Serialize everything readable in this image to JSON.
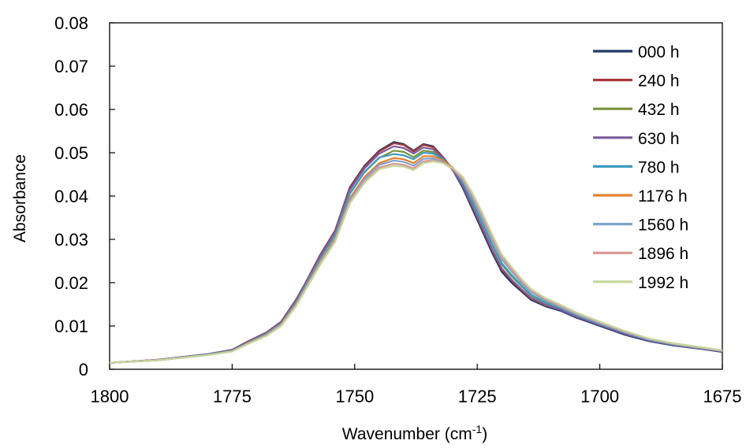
{
  "chart_data": {
    "type": "line",
    "title": "",
    "xlabel": "Wavenumber (cm",
    "xlabel_sup": "-1",
    "xlabel_suffix": ")",
    "ylabel": "Absorbance",
    "xlim": [
      1800,
      1675
    ],
    "x_reversed": true,
    "ylim": [
      0,
      0.08
    ],
    "x_ticks": [
      "1800",
      "1775",
      "1750",
      "1725",
      "1700",
      "1675"
    ],
    "y_ticks": [
      "0",
      "0.01",
      "0.02",
      "0.03",
      "0.04",
      "0.05",
      "0.06",
      "0.07",
      "0.08"
    ],
    "grid": false,
    "legend_position": "top-right",
    "x": [
      1800,
      1790,
      1780,
      1775,
      1772,
      1768,
      1765,
      1762,
      1760,
      1757,
      1754,
      1751,
      1748,
      1745,
      1742,
      1740,
      1738,
      1736,
      1734,
      1732,
      1730,
      1728,
      1726,
      1724,
      1722,
      1720,
      1718,
      1716,
      1714,
      1711,
      1708,
      1705,
      1700,
      1695,
      1690,
      1685,
      1680,
      1675
    ],
    "series": [
      {
        "name": "000 h",
        "color": "#1f3864",
        "values": [
          0.0015,
          0.0022,
          0.0035,
          0.0045,
          0.0063,
          0.0085,
          0.011,
          0.016,
          0.02,
          0.0265,
          0.032,
          0.042,
          0.047,
          0.0505,
          0.0525,
          0.052,
          0.0505,
          0.052,
          0.0515,
          0.049,
          0.046,
          0.042,
          0.037,
          0.032,
          0.027,
          0.0225,
          0.02,
          0.018,
          0.016,
          0.0145,
          0.0135,
          0.012,
          0.01,
          0.008,
          0.0065,
          0.0055,
          0.0048,
          0.004
        ]
      },
      {
        "name": "240 h",
        "color": "#a9373b",
        "values": [
          0.0015,
          0.0022,
          0.0035,
          0.0045,
          0.0063,
          0.0085,
          0.011,
          0.016,
          0.02,
          0.0265,
          0.032,
          0.0418,
          0.0468,
          0.0503,
          0.0522,
          0.0518,
          0.0503,
          0.0518,
          0.0513,
          0.049,
          0.0462,
          0.0425,
          0.0375,
          0.0325,
          0.0275,
          0.023,
          0.0205,
          0.0183,
          0.0163,
          0.0147,
          0.0137,
          0.0122,
          0.0102,
          0.0082,
          0.0067,
          0.0056,
          0.0049,
          0.0041
        ]
      },
      {
        "name": "432 h",
        "color": "#77933c",
        "values": [
          0.0015,
          0.0021,
          0.0034,
          0.0043,
          0.006,
          0.0082,
          0.0106,
          0.0154,
          0.0194,
          0.0256,
          0.031,
          0.0405,
          0.0455,
          0.0488,
          0.0505,
          0.0502,
          0.049,
          0.0505,
          0.0502,
          0.0485,
          0.0462,
          0.043,
          0.0385,
          0.0338,
          0.0288,
          0.0242,
          0.0215,
          0.0192,
          0.017,
          0.0152,
          0.014,
          0.0125,
          0.0104,
          0.0084,
          0.0068,
          0.0057,
          0.005,
          0.0042
        ]
      },
      {
        "name": "630 h",
        "color": "#7a5c9c",
        "values": [
          0.0015,
          0.0022,
          0.0035,
          0.0044,
          0.0062,
          0.0084,
          0.0109,
          0.0158,
          0.0198,
          0.0262,
          0.0317,
          0.0414,
          0.0464,
          0.0498,
          0.0515,
          0.0511,
          0.0498,
          0.0512,
          0.0508,
          0.0487,
          0.046,
          0.0424,
          0.0376,
          0.0328,
          0.0278,
          0.0233,
          0.0207,
          0.0185,
          0.0165,
          0.0148,
          0.0137,
          0.0122,
          0.0102,
          0.0082,
          0.0066,
          0.0056,
          0.0049,
          0.0041
        ]
      },
      {
        "name": "780 h",
        "color": "#3f9bbf",
        "values": [
          0.0015,
          0.0021,
          0.0034,
          0.0043,
          0.006,
          0.0082,
          0.0106,
          0.0154,
          0.0194,
          0.0256,
          0.031,
          0.0406,
          0.0456,
          0.0489,
          0.0497,
          0.0494,
          0.0485,
          0.05,
          0.0498,
          0.0485,
          0.0465,
          0.0433,
          0.0388,
          0.034,
          0.029,
          0.0245,
          0.0218,
          0.0194,
          0.0172,
          0.0154,
          0.0141,
          0.0126,
          0.0105,
          0.0085,
          0.0068,
          0.0057,
          0.005,
          0.0042
        ]
      },
      {
        "name": "1176 h",
        "color": "#e6822e",
        "values": [
          0.0015,
          0.0021,
          0.0033,
          0.0042,
          0.0059,
          0.008,
          0.0104,
          0.015,
          0.019,
          0.025,
          0.0303,
          0.0395,
          0.0444,
          0.0476,
          0.0488,
          0.0485,
          0.0476,
          0.0492,
          0.0492,
          0.0482,
          0.0466,
          0.044,
          0.0398,
          0.0352,
          0.0302,
          0.0256,
          0.0228,
          0.0202,
          0.018,
          0.016,
          0.0146,
          0.013,
          0.0108,
          0.0087,
          0.007,
          0.0059,
          0.0051,
          0.0043
        ]
      },
      {
        "name": "1560 h",
        "color": "#7ea3d0",
        "values": [
          0.0015,
          0.0021,
          0.0033,
          0.0042,
          0.0058,
          0.0079,
          0.0103,
          0.0148,
          0.0188,
          0.0247,
          0.03,
          0.0391,
          0.044,
          0.0472,
          0.0482,
          0.0479,
          0.047,
          0.0486,
          0.0487,
          0.0478,
          0.0463,
          0.0437,
          0.0396,
          0.035,
          0.03,
          0.0254,
          0.0226,
          0.02,
          0.0178,
          0.0158,
          0.0144,
          0.0128,
          0.0106,
          0.0086,
          0.0069,
          0.0058,
          0.005,
          0.0042
        ]
      },
      {
        "name": "1896 h",
        "color": "#d99694",
        "values": [
          0.0015,
          0.0021,
          0.0033,
          0.0041,
          0.0058,
          0.0078,
          0.0102,
          0.0147,
          0.0186,
          0.0245,
          0.0297,
          0.0387,
          0.0435,
          0.0466,
          0.0475,
          0.0472,
          0.0464,
          0.048,
          0.0483,
          0.0476,
          0.0463,
          0.044,
          0.04,
          0.0355,
          0.0305,
          0.0259,
          0.023,
          0.0204,
          0.0181,
          0.0161,
          0.0146,
          0.013,
          0.0108,
          0.0087,
          0.007,
          0.0059,
          0.0051,
          0.0043
        ]
      },
      {
        "name": "1992 h",
        "color": "#c3d69b",
        "values": [
          0.0015,
          0.0021,
          0.0033,
          0.0041,
          0.0057,
          0.0077,
          0.01,
          0.0145,
          0.0184,
          0.0242,
          0.0294,
          0.0383,
          0.0431,
          0.0462,
          0.047,
          0.0468,
          0.046,
          0.0476,
          0.048,
          0.0476,
          0.0465,
          0.0445,
          0.0407,
          0.0362,
          0.0312,
          0.0265,
          0.0236,
          0.0209,
          0.0185,
          0.0164,
          0.0149,
          0.0132,
          0.011,
          0.0089,
          0.0071,
          0.006,
          0.0052,
          0.0044
        ]
      }
    ]
  }
}
